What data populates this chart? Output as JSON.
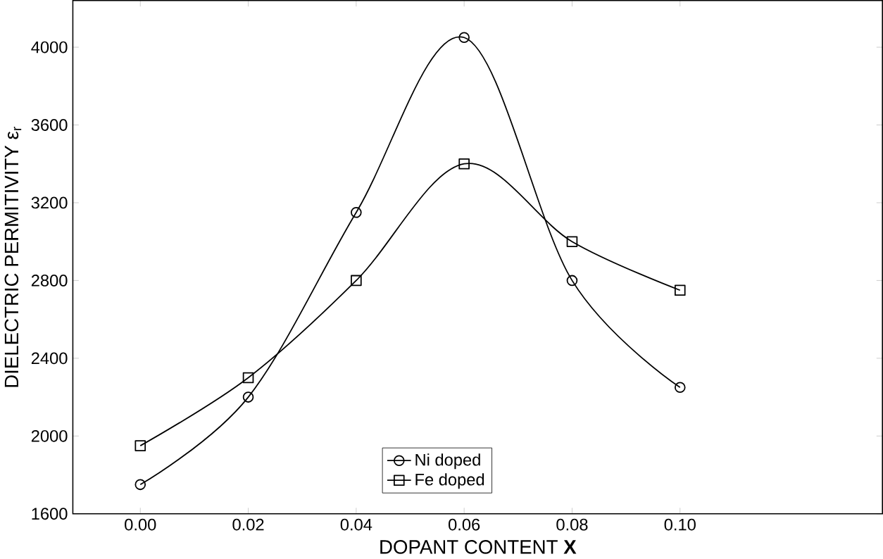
{
  "chart_data": {
    "type": "line",
    "xlabel": "DOPANT CONTENT **X**",
    "ylabel": "DIELECTRIC PERMITIVITY ε$_{r}$",
    "x": [
      0.0,
      0.02,
      0.04,
      0.06,
      0.08,
      0.1
    ],
    "series": [
      {
        "name": "Ni doped",
        "color": "#000000",
        "marker": "circle",
        "values": [
          1750,
          2200,
          3150,
          4050,
          2800,
          2250
        ]
      },
      {
        "name": "Fe doped",
        "color": "#000000",
        "marker": "square",
        "values": [
          1950,
          2300,
          2800,
          3400,
          3000,
          2750
        ]
      }
    ],
    "xlim": [
      -0.0125,
      0.1375
    ],
    "ylim": [
      1600,
      4240
    ],
    "xticks": [
      {
        "value": 0.0,
        "label": "0.00"
      },
      {
        "value": 0.02,
        "label": "0.02"
      },
      {
        "value": 0.04,
        "label": "0.04"
      },
      {
        "value": 0.06,
        "label": "0.06"
      },
      {
        "value": 0.08,
        "label": "0.08"
      },
      {
        "value": 0.1,
        "label": "0.10"
      }
    ],
    "yticks": [
      1600,
      2000,
      2400,
      2800,
      3200,
      3600,
      4000
    ],
    "legend": "bottom",
    "grid": false,
    "line_style": "solid"
  }
}
